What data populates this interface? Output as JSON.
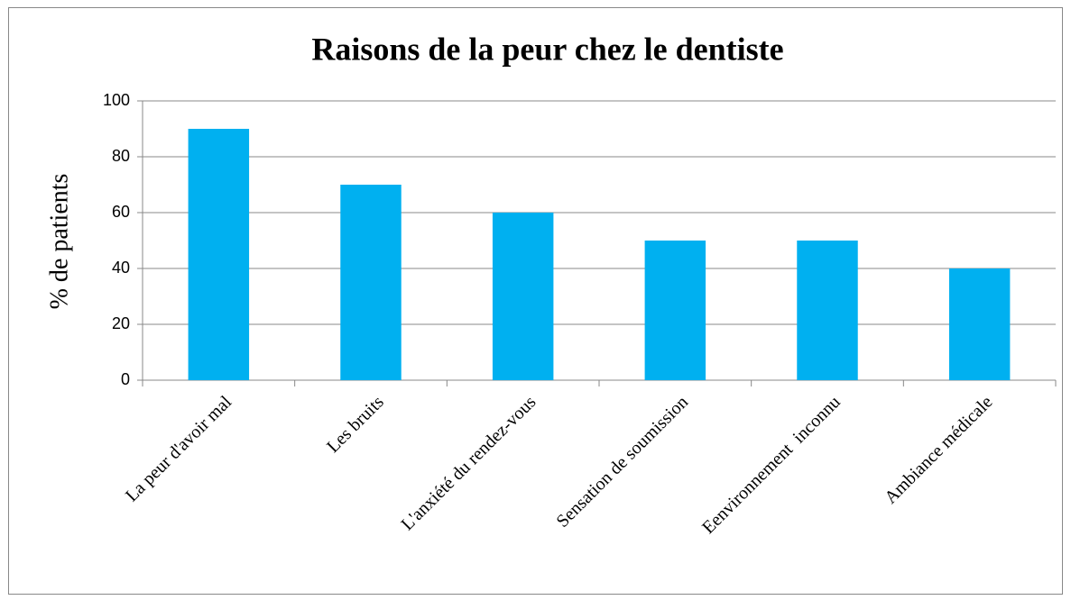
{
  "chart_data": {
    "type": "bar",
    "title": "Raisons de la peur chez le dentiste",
    "y_label": "% de patients",
    "categories": [
      "La peur d'avoir mal",
      "Les bruits",
      "L'anxiété du rendez-vous",
      "Sensation de soumission",
      "Eenvironnement  inconnu",
      "Ambiance médicale"
    ],
    "values": [
      90,
      70,
      60,
      50,
      50,
      40
    ],
    "color": "#00b0f0",
    "ylim": [
      0,
      100
    ],
    "yticks": [
      0,
      20,
      40,
      60,
      80,
      100
    ],
    "grid": true
  }
}
